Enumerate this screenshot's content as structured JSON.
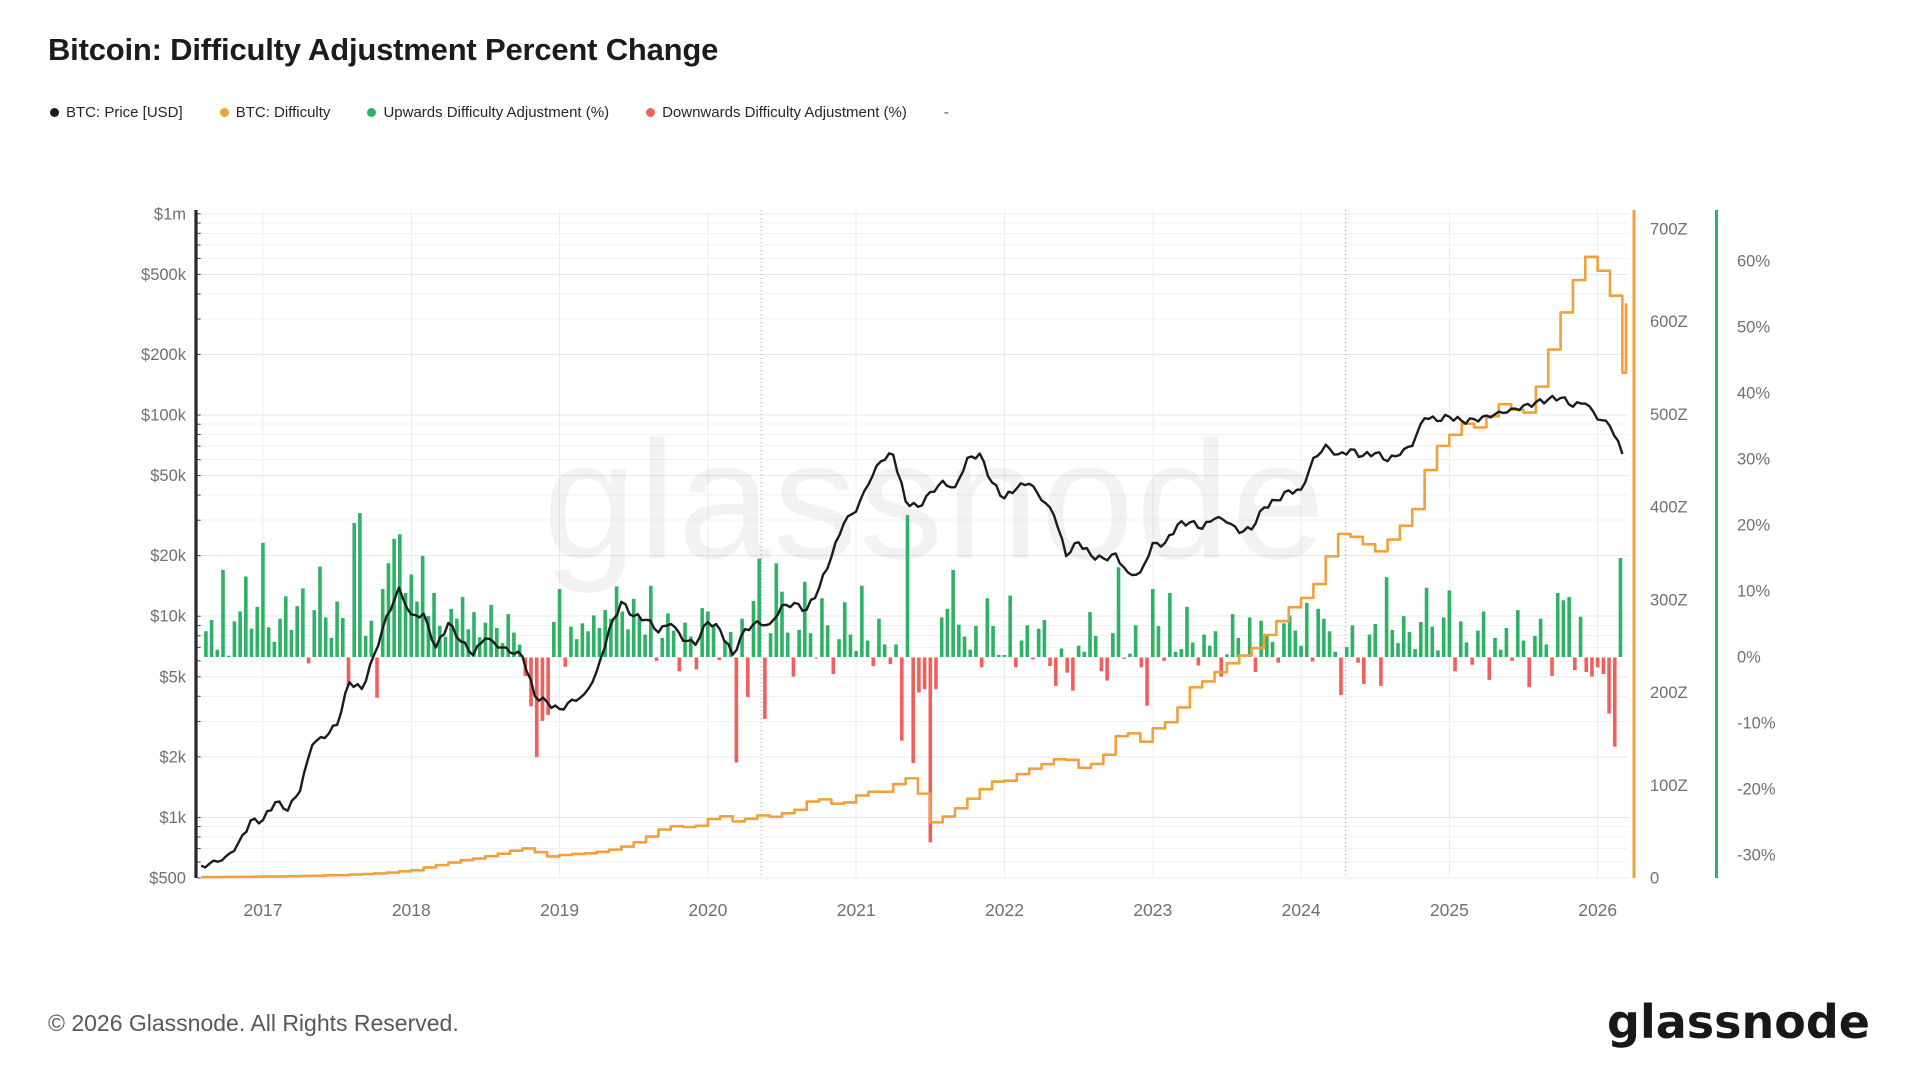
{
  "title": "Bitcoin: Difficulty Adjustment Percent Change",
  "legend": {
    "items": [
      {
        "label": "BTC: Price [USD]",
        "color": "#1b1c20"
      },
      {
        "label": "BTC: Difficulty",
        "color": "#F2A13A"
      },
      {
        "label": "Upwards Difficulty Adjustment (%)",
        "color": "#2EB266"
      },
      {
        "label": "Downwards Difficulty Adjustment (%)",
        "color": "#F15F5A"
      },
      {
        "label": "-",
        "color": "#55565a"
      }
    ]
  },
  "watermark": "glassnode",
  "footer": {
    "copyright": "© 2026 Glassnode. All Rights Reserved.",
    "logo": "glassnode"
  },
  "chart_data": {
    "type": "combo",
    "title": "Bitcoin: Difficulty Adjustment Percent Change",
    "xlim": [
      2016.55,
      2026.28
    ],
    "grid": true,
    "legend_position": "top-left",
    "annotations": {
      "halving_lines_x": [
        2020.36,
        2024.3
      ]
    },
    "axes": {
      "x": {
        "ticks": [
          "2017",
          "2018",
          "2019",
          "2020",
          "2021",
          "2022",
          "2023",
          "2024",
          "2025",
          "2026"
        ],
        "tick_values": [
          2017,
          2018,
          2019,
          2020,
          2021,
          2022,
          2023,
          2024,
          2025,
          2026
        ]
      },
      "price": {
        "side": "left",
        "scale": "log",
        "color": "#26272b",
        "ticks": [
          "$1m",
          "$500k",
          "$200k",
          "$100k",
          "$50k",
          "$20k",
          "$10k",
          "$5k",
          "$2k",
          "$1k",
          "$500"
        ],
        "tick_values": [
          1000000,
          500000,
          200000,
          100000,
          50000,
          20000,
          10000,
          5000,
          2000,
          1000,
          500
        ],
        "range": [
          500,
          1000000
        ]
      },
      "difficulty": {
        "side": "right",
        "scale": "linear",
        "unit": "Z",
        "color": "#F2A13A",
        "ticks": [
          "700Z",
          "600Z",
          "500Z",
          "400Z",
          "300Z",
          "200Z",
          "100Z",
          "0"
        ],
        "tick_values": [
          700,
          600,
          500,
          400,
          300,
          200,
          100,
          0
        ],
        "range": [
          0,
          720
        ]
      },
      "percent": {
        "side": "far-right",
        "scale": "linear",
        "color": "#2CB36A",
        "ticks": [
          "60%",
          "50%",
          "40%",
          "30%",
          "20%",
          "10%",
          "0%",
          "-10%",
          "-20%",
          "-30%"
        ],
        "tick_values": [
          60,
          50,
          40,
          30,
          20,
          10,
          0,
          -10,
          -20,
          -30
        ],
        "range": [
          -33.5,
          67.7
        ]
      }
    },
    "series": [
      {
        "name": "BTC: Price [USD]",
        "type": "line",
        "axis": "price",
        "color": "#1b1c20",
        "start": 2016.583,
        "step": 0.083333,
        "values": [
          575,
          610,
          640,
          745,
          965,
          970,
          1190,
          1080,
          1350,
          2300,
          2480,
          2880,
          4700,
          4350,
          6450,
          10000,
          13900,
          10200,
          10300,
          7000,
          9250,
          7500,
          6400,
          7750,
          7000,
          6600,
          6300,
          4020,
          3740,
          3460,
          3850,
          4100,
          5300,
          8560,
          11800,
          10000,
          9600,
          8300,
          9150,
          7550,
          7200,
          9350,
          8550,
          6440,
          8620,
          9450,
          9140,
          11350,
          11650,
          10780,
          13800,
          19700,
          28900,
          33100,
          45200,
          58800,
          63500,
          37300,
          35000,
          41500,
          47100,
          43800,
          61300,
          64400,
          46200,
          38500,
          43200,
          45500,
          37700,
          31800,
          19900,
          23300,
          20050,
          19400,
          20500,
          16500,
          16550,
          23100,
          23150,
          28500,
          29250,
          27200,
          30480,
          29230,
          25930,
          26970,
          34650,
          37700,
          42280,
          42580,
          61200,
          71300,
          63800,
          67500,
          62680,
          64600,
          58970,
          63330,
          70200,
          96400,
          93400,
          98000,
          93500,
          95500,
          99500,
          104000,
          107500,
          111500,
          116000,
          119500,
          121500,
          110000,
          114000,
          95000,
          88000,
          64000
        ]
      },
      {
        "name": "BTC: Difficulty",
        "type": "step-line",
        "axis": "difficulty",
        "color": "#F2A13A",
        "start": 2016.583,
        "step": 0.083333,
        "values": [
          0.9,
          1.0,
          1.1,
          1.2,
          1.4,
          1.5,
          1.7,
          1.9,
          2.2,
          2.4,
          2.9,
          3.1,
          3.7,
          4.3,
          4.9,
          5.9,
          7.2,
          8.3,
          11.4,
          13.9,
          16.7,
          19.2,
          21.0,
          23.5,
          26.2,
          29.5,
          31.9,
          27.8,
          23.3,
          24.8,
          26.0,
          26.6,
          28.2,
          30.5,
          33.9,
          38.5,
          44.7,
          52.2,
          55.9,
          55.0,
          56.3,
          63.5,
          66.5,
          61.0,
          63.8,
          67.5,
          66.0,
          69.8,
          73.5,
          82.5,
          84.8,
          80.2,
          81.5,
          89.0,
          93.1,
          93.0,
          101.3,
          107.6,
          91.0,
          60.0,
          66.3,
          75.2,
          85.5,
          95.8,
          104.0,
          105.0,
          112.0,
          117.9,
          122.7,
          128.0,
          127.3,
          118.9,
          123.0,
          133.0,
          153.0,
          156.0,
          147.0,
          161.5,
          168.0,
          184.0,
          205.7,
          212.0,
          222.0,
          231.6,
          240.0,
          248.0,
          262.1,
          277.0,
          292.0,
          302.1,
          317.0,
          347.0,
          371.1,
          368.0,
          360.0,
          352.4,
          365.0,
          380.0,
          398.0,
          440.0,
          466.1,
          478.0,
          490.0,
          486.0,
          498.0,
          511.0,
          505.0,
          502.0,
          530.0,
          570.0,
          610.0,
          645.0,
          670.0,
          655.0,
          628.0,
          545.0,
          620.0
        ]
      },
      {
        "name": "Difficulty Adjustment (%)",
        "type": "bar",
        "axis": "percent",
        "up_name": "Upwards Difficulty Adjustment (%)",
        "up_color": "#2EB266",
        "down_name": "Downwards Difficulty Adjustment (%)",
        "down_color": "#F15F5A",
        "start": 2016.615,
        "step": 0.038462,
        "values": [
          3.9,
          5.6,
          1.1,
          13.2,
          0.2,
          5.4,
          6.9,
          12.2,
          4.3,
          7.6,
          17.3,
          4.5,
          2.3,
          5.8,
          9.2,
          4.1,
          7.7,
          10.4,
          -0.9,
          7.1,
          13.7,
          6.0,
          2.9,
          8.4,
          5.9,
          -4.2,
          20.3,
          21.8,
          3.2,
          5.5,
          -6.1,
          10.3,
          14.2,
          17.9,
          18.6,
          9.7,
          12.5,
          8.4,
          15.3,
          6.2,
          9.7,
          4.7,
          3.1,
          7.3,
          5.8,
          9.1,
          4.2,
          6.8,
          3.0,
          5.2,
          7.9,
          4.4,
          2.1,
          6.5,
          3.7,
          1.9,
          -2.8,
          -7.4,
          -15.1,
          -9.6,
          -8.7,
          5.3,
          10.3,
          -1.4,
          4.6,
          2.7,
          5.1,
          3.9,
          6.3,
          4.4,
          7.1,
          5.8,
          10.7,
          6.9,
          4.2,
          8.8,
          6.1,
          3.4,
          10.8,
          -0.5,
          2.9,
          6.6,
          4.0,
          -2.1,
          5.2,
          3.1,
          -1.8,
          7.4,
          6.9,
          4.7,
          -0.4,
          2.5,
          3.8,
          -15.9,
          5.8,
          -6.0,
          8.5,
          14.9,
          -9.3,
          3.6,
          14.2,
          9.9,
          3.7,
          -2.9,
          4.1,
          11.4,
          3.6,
          -0.1,
          8.9,
          4.8,
          -2.5,
          2.7,
          8.3,
          3.4,
          0.9,
          10.8,
          2.5,
          -1.3,
          5.8,
          1.9,
          -1.0,
          1.9,
          -12.6,
          21.5,
          -16.0,
          -5.3,
          -4.8,
          -28.0,
          -4.8,
          6.0,
          7.3,
          13.2,
          4.9,
          3.1,
          1.1,
          4.7,
          -1.5,
          8.9,
          4.7,
          0.3,
          0.3,
          9.3,
          -1.5,
          2.5,
          4.8,
          -0.3,
          4.3,
          5.6,
          -1.3,
          -4.3,
          1.3,
          -2.3,
          -5.0,
          1.7,
          0.8,
          6.8,
          3.2,
          -2.1,
          -3.5,
          3.6,
          13.6,
          -0.2,
          0.5,
          4.8,
          -1.5,
          -7.3,
          10.3,
          4.7,
          -0.5,
          9.7,
          0.8,
          1.2,
          7.6,
          2.2,
          -1.2,
          3.4,
          1.7,
          3.9,
          -2.9,
          0.4,
          6.5,
          2.9,
          0.1,
          6.0,
          -2.2,
          5.5,
          3.5,
          2.3,
          -0.8,
          5.1,
          6.3,
          4.0,
          1.7,
          8.2,
          -0.6,
          7.3,
          5.8,
          3.9,
          0.8,
          -5.7,
          1.5,
          4.8,
          -0.8,
          -4.0,
          3.4,
          5.0,
          -4.3,
          12.1,
          4.1,
          2.1,
          6.2,
          3.8,
          1.2,
          5.3,
          10.5,
          4.6,
          1.0,
          6.0,
          10.1,
          -2.1,
          5.4,
          2.2,
          -1.1,
          4.0,
          6.9,
          -3.4,
          2.9,
          1.1,
          4.4,
          -0.5,
          7.1,
          2.5,
          -4.5,
          3.2,
          5.8,
          1.9,
          -2.8,
          9.7,
          8.6,
          9.1,
          -1.9,
          6.1,
          -2.2,
          -2.9,
          -1.5,
          -2.5,
          -8.5,
          -13.5,
          15.0
        ]
      }
    ]
  }
}
